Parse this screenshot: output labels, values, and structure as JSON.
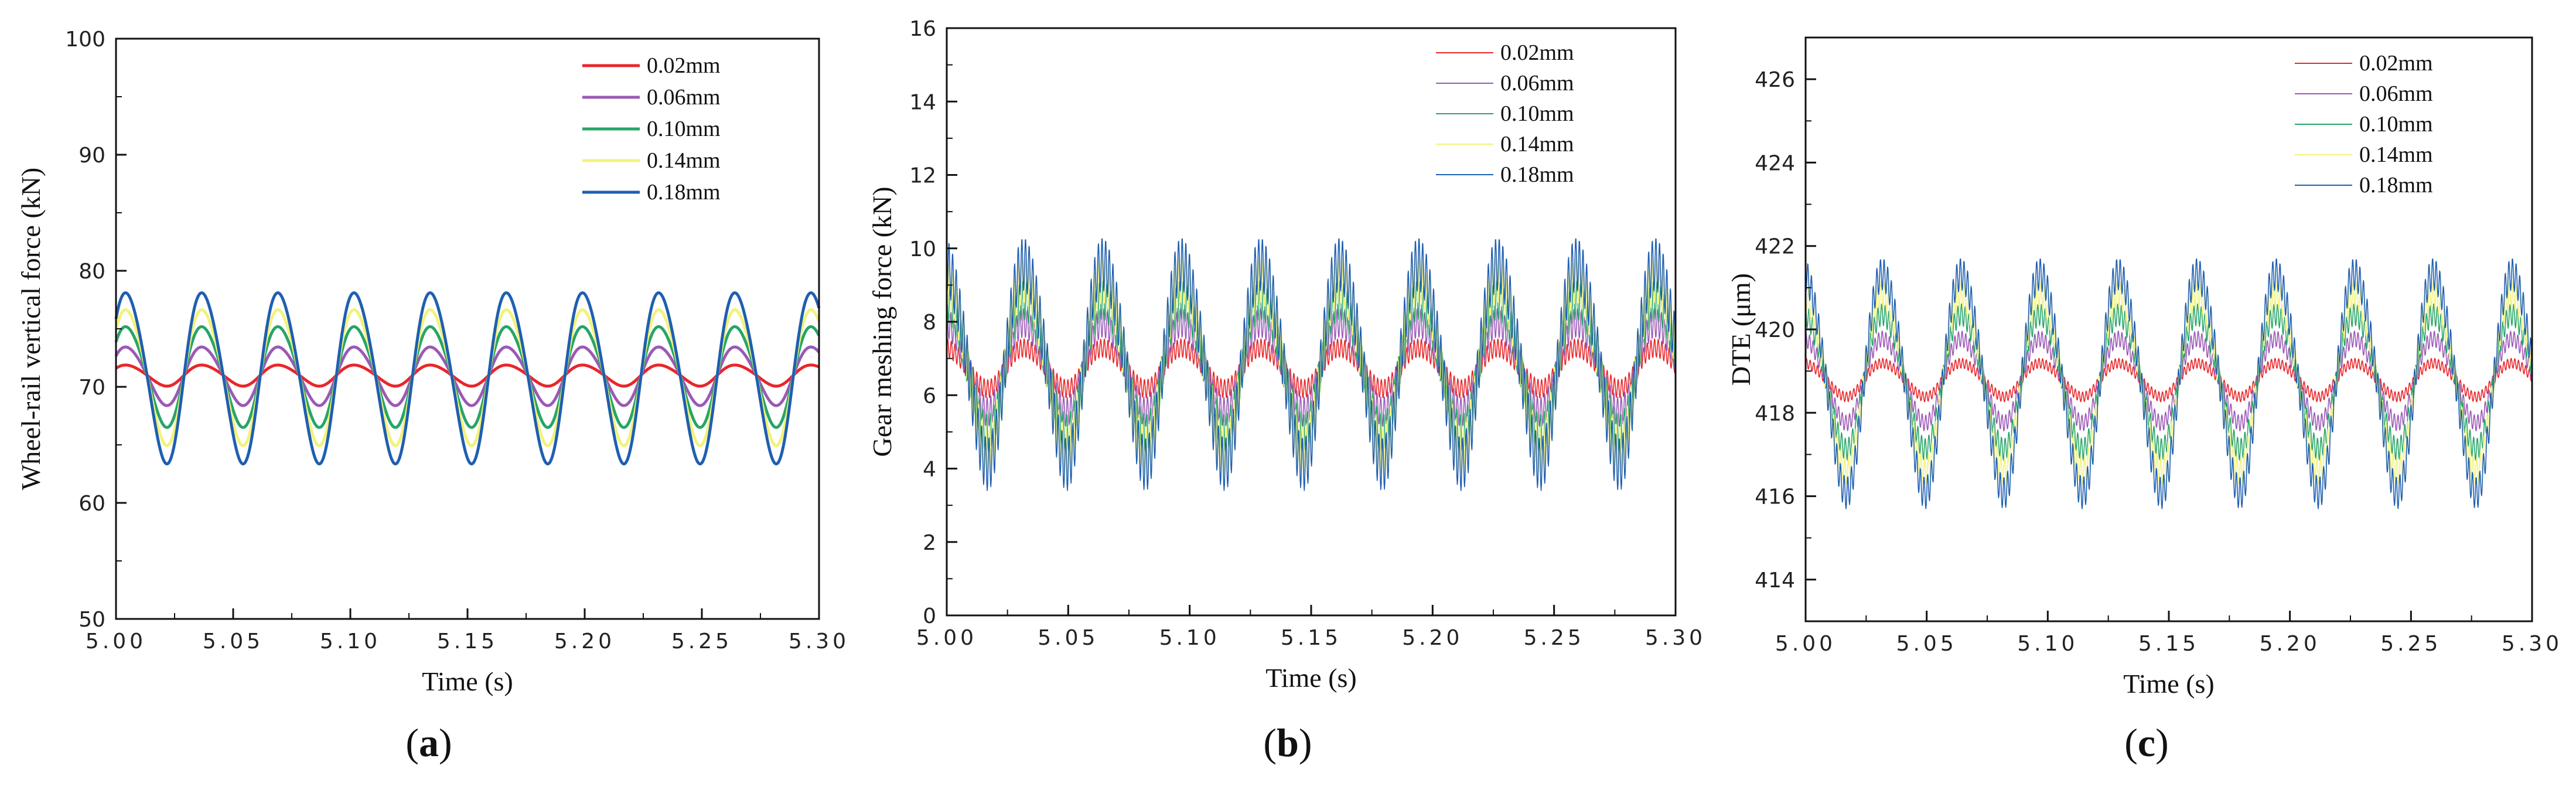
{
  "colors": {
    "0.02mm": "#e8262a",
    "0.06mm": "#9b59b6",
    "0.10mm": "#27a567",
    "0.14mm": "#f2f27a",
    "0.18mm": "#1f5fb0"
  },
  "chart_data": [
    {
      "type": "line",
      "panel_label": "a",
      "xlabel": "Time (s)",
      "ylabel": "Wheel-rail vertical force (kN)",
      "xlim": [
        5.0,
        5.3
      ],
      "ylim": [
        50,
        100
      ],
      "xticks": [
        "5.00",
        "5.05",
        "5.10",
        "5.15",
        "5.20",
        "5.25",
        "5.30"
      ],
      "yticks": [
        "50",
        "60",
        "70",
        "80",
        "90",
        "100"
      ],
      "ytick_values": [
        50,
        60,
        70,
        80,
        90,
        100
      ],
      "legend_position": "top-right",
      "line_style": "solid",
      "period_s": 0.0325,
      "phase_offset": 0.1,
      "ripple_fraction": 0.0,
      "series": [
        {
          "name": "0.02mm",
          "mean": 71.0,
          "amplitude": 0.9
        },
        {
          "name": "0.06mm",
          "mean": 71.0,
          "amplitude": 2.5
        },
        {
          "name": "0.10mm",
          "mean": 71.0,
          "amplitude": 4.3
        },
        {
          "name": "0.14mm",
          "mean": 71.0,
          "amplitude": 5.8
        },
        {
          "name": "0.18mm",
          "mean": 71.0,
          "amplitude": 7.3
        }
      ]
    },
    {
      "type": "line",
      "panel_label": "b",
      "xlabel": "Time (s)",
      "ylabel": "Gear meshing force (kN)",
      "xlim": [
        5.0,
        5.3
      ],
      "ylim": [
        0,
        16
      ],
      "xticks": [
        "5.00",
        "5.05",
        "5.10",
        "5.15",
        "5.20",
        "5.25",
        "5.30"
      ],
      "yticks": [
        "0",
        "2",
        "4",
        "6",
        "8",
        "10",
        "12",
        "14",
        "16"
      ],
      "ytick_values": [
        0,
        2,
        4,
        6,
        8,
        10,
        12,
        14,
        16
      ],
      "legend_position": "top-right",
      "line_style": "thin",
      "period_s": 0.0325,
      "phase_offset": 0.25,
      "ripple_fraction": 0.22,
      "series": [
        {
          "name": "0.02mm",
          "mean": 6.75,
          "amplitude": 0.55
        },
        {
          "name": "0.06mm",
          "mean": 6.8,
          "amplitude": 1.2
        },
        {
          "name": "0.10mm",
          "mean": 6.85,
          "amplitude": 1.8
        },
        {
          "name": "0.14mm",
          "mean": 6.9,
          "amplitude": 2.3
        },
        {
          "name": "0.18mm",
          "mean": 6.95,
          "amplitude": 2.7
        }
      ]
    },
    {
      "type": "line",
      "panel_label": "c",
      "xlabel": "Time (s)",
      "ylabel": "DTE (μm)",
      "xlim": [
        5.0,
        5.3
      ],
      "ylim": [
        413,
        427
      ],
      "xticks": [
        "5.00",
        "5.05",
        "5.10",
        "5.15",
        "5.20",
        "5.25",
        "5.30"
      ],
      "yticks": [
        "414",
        "416",
        "418",
        "420",
        "422",
        "424",
        "426"
      ],
      "ytick_values": [
        414,
        416,
        418,
        420,
        422,
        424,
        426
      ],
      "legend_position": "top-right",
      "line_style": "thin",
      "period_s": 0.0325,
      "phase_offset": 0.25,
      "ripple_fraction": 0.12,
      "series": [
        {
          "name": "0.02mm",
          "mean": 418.8,
          "amplitude": 0.4
        },
        {
          "name": "0.06mm",
          "mean": 418.8,
          "amplitude": 1.0
        },
        {
          "name": "0.10mm",
          "mean": 418.8,
          "amplitude": 1.6
        },
        {
          "name": "0.14mm",
          "mean": 418.8,
          "amplitude": 2.1
        },
        {
          "name": "0.18mm",
          "mean": 418.8,
          "amplitude": 2.6
        }
      ]
    }
  ]
}
